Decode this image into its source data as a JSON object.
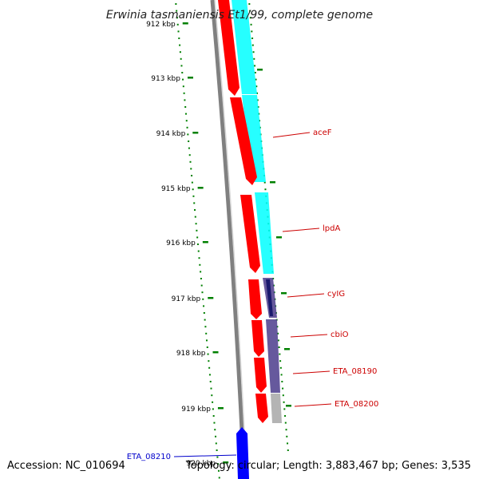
{
  "title": "Erwinia tasmaniensis Et1/99, complete genome",
  "footer": {
    "accession": "Accession: NC_010694",
    "summary": "Topology: circular; Length: 3,883,467 bp; Genes: 3,535"
  },
  "ticks": [
    "912 kbp",
    "913 kbp",
    "914 kbp",
    "915 kbp",
    "916 kbp",
    "917 kbp",
    "918 kbp",
    "919 kbp",
    "920 kbp"
  ],
  "genes": [
    {
      "label": "aceF",
      "color": "#cc0000"
    },
    {
      "label": "lpdA",
      "color": "#cc0000"
    },
    {
      "label": "cyIG",
      "color": "#cc0000"
    },
    {
      "label": "cbiO",
      "color": "#cc0000"
    },
    {
      "label": "ETA_08190",
      "color": "#cc0000"
    },
    {
      "label": "ETA_08200",
      "color": "#cc0000"
    },
    {
      "label": "ETA_08210",
      "color": "#0000cc"
    }
  ],
  "colors": {
    "backbone": "#808080",
    "forward_cds": "#ff0000",
    "reverse_cds": "#0000ff",
    "blast_cyan": "#00ffff",
    "blast_purple": "#4b3c8c",
    "blast_grey": "#b4b4b4",
    "ticks": "#008000"
  }
}
